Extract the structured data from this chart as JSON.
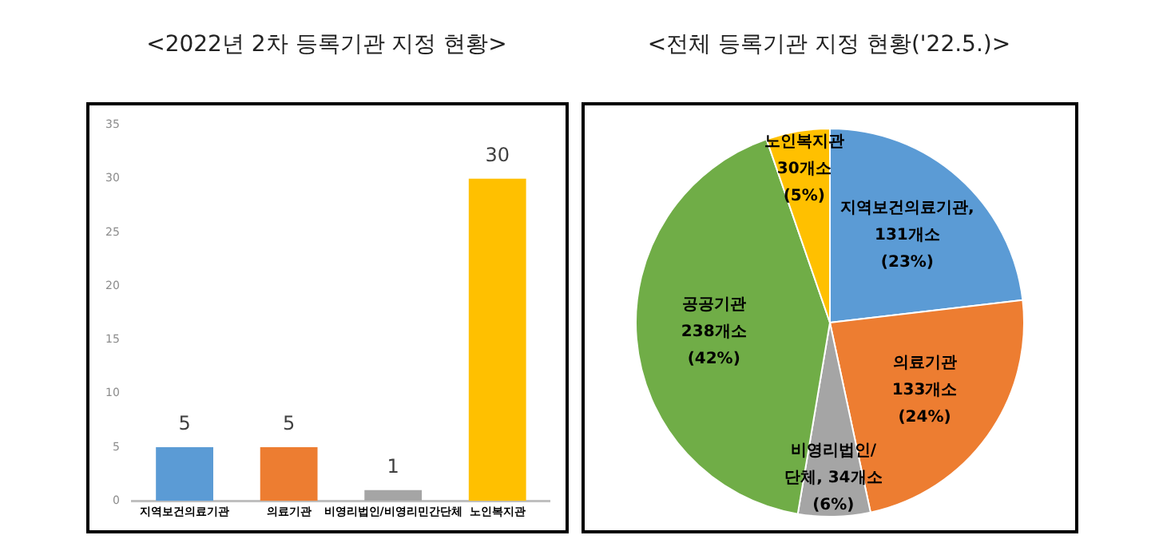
{
  "chart_data": [
    {
      "type": "bar",
      "title": "<2022년 2차 등록기관 지정 현황>",
      "categories": [
        "지역보건의료기관",
        "의료기관",
        "비영리법인/비영리민간단체",
        "노인복지관"
      ],
      "values": [
        5,
        5,
        1,
        30
      ],
      "colors": [
        "#5b9bd5",
        "#ed7d31",
        "#a5a5a5",
        "#ffc000"
      ],
      "ylim": [
        0,
        35
      ],
      "yticks": [
        0,
        5,
        10,
        15,
        20,
        25,
        30,
        35
      ],
      "grid": false,
      "legend": false,
      "data_labels": true
    },
    {
      "type": "pie",
      "title": "<전체 등록기관 지정 현황('22.5.)>",
      "categories": [
        "지역보건의료기관",
        "의료기관",
        "비영리법인/단체",
        "공공기관",
        "노인복지관"
      ],
      "values": [
        131,
        133,
        34,
        238,
        30
      ],
      "colors": [
        "#5b9bd5",
        "#ed7d31",
        "#a5a5a5",
        "#70ad47",
        "#ffc000"
      ],
      "legend": false,
      "value_labels": [
        ",\n131개소\n(23%)",
        "\n133개소\n(24%)",
        ", 34개소\n(6%)",
        "\n238개소\n(42%)",
        "\n30개소\n(5%)"
      ]
    }
  ]
}
